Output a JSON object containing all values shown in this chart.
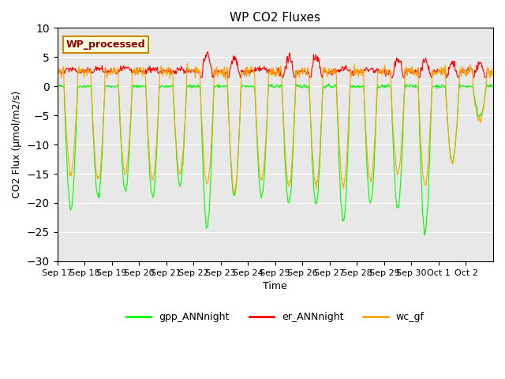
{
  "title": "WP CO2 Fluxes",
  "xlabel": "Time",
  "ylabel": "CO2 Flux (μmol/m2/s)",
  "ylim": [
    -30,
    10
  ],
  "annotation": "WP_processed",
  "bg_color": "#e8e8e8",
  "line_colors": {
    "gpp": "#00ff00",
    "er": "#ff0000",
    "wc": "#ffa500"
  },
  "legend_labels": [
    "gpp_ANNnight",
    "er_ANNnight",
    "wc_gf"
  ],
  "x_tick_labels": [
    "Sep 17",
    "Sep 18",
    "Sep 19",
    "Sep 20",
    "Sep 21",
    "Sep 22",
    "Sep 23",
    "Sep 24",
    "Sep 25",
    "Sep 26",
    "Sep 27",
    "Sep 28",
    "Sep 29",
    "Sep 30",
    "Oct 1",
    "Oct 2"
  ],
  "num_days": 16,
  "points_per_day": 48
}
